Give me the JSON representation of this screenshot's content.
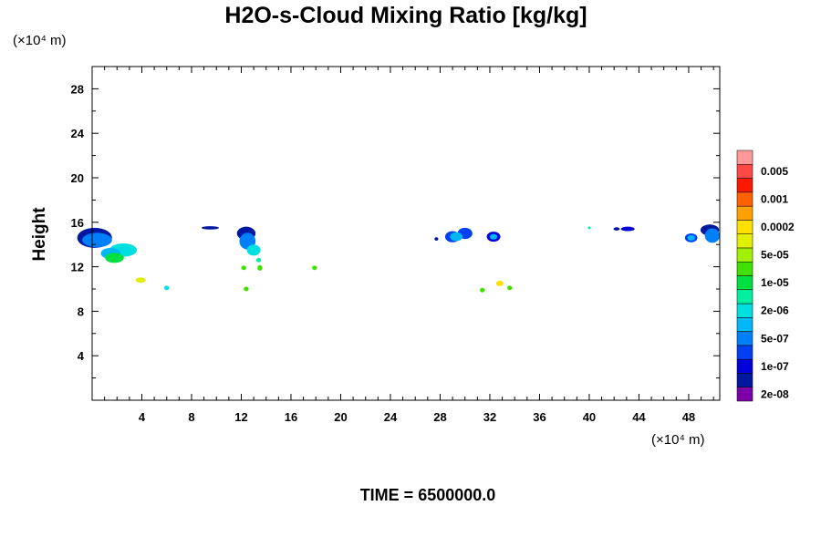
{
  "chart_data": {
    "type": "heatmap",
    "title": "H2O-s-Cloud Mixing Ratio [kg/kg]",
    "ylabel": "Height",
    "y_unit": "(×10⁴ m)",
    "x_unit": "(×10⁴ m)",
    "time_label": "TIME = 6500000.0",
    "xlim": [
      0,
      50.5
    ],
    "ylim": [
      0,
      30
    ],
    "x_ticks": [
      4,
      8,
      12,
      16,
      20,
      24,
      28,
      32,
      36,
      40,
      44,
      48
    ],
    "x_tick_labels": [
      "4",
      "8",
      "12",
      "16",
      "20",
      "24",
      "28",
      "32",
      "36",
      "40",
      "44",
      "48"
    ],
    "y_ticks": [
      4,
      8,
      12,
      16,
      20,
      24,
      28
    ],
    "y_tick_labels": [
      "4",
      "8",
      "12",
      "16",
      "20",
      "24",
      "28"
    ],
    "colorbar": {
      "colors": [
        "#7b00a8",
        "#0018a0",
        "#0000d8",
        "#0040f0",
        "#0080f8",
        "#00b8f8",
        "#00e0e0",
        "#00f0a0",
        "#00e040",
        "#40e000",
        "#a0f000",
        "#e0f000",
        "#ffe000",
        "#ffa000",
        "#ff6000",
        "#ff1800",
        "#ff4848",
        "#ff9898"
      ],
      "labels": [
        "2e-08",
        "1e-07",
        "5e-07",
        "2e-06",
        "1e-05",
        "5e-05",
        "0.0002",
        "0.001",
        "0.005"
      ]
    },
    "cloud_patches": [
      {
        "x": 0.2,
        "y": 14.6,
        "w": 2.8,
        "h": 1.8,
        "level": 1
      },
      {
        "x": 0.4,
        "y": 14.4,
        "w": 2.4,
        "h": 1.3,
        "level": 4
      },
      {
        "x": 2.5,
        "y": 13.5,
        "w": 2.2,
        "h": 1.2,
        "level": 6
      },
      {
        "x": 1.5,
        "y": 13.2,
        "w": 1.6,
        "h": 1.0,
        "level": 5
      },
      {
        "x": 1.8,
        "y": 12.8,
        "w": 1.5,
        "h": 0.9,
        "level": 8
      },
      {
        "x": 3.9,
        "y": 10.8,
        "w": 0.8,
        "h": 0.5,
        "level": 11
      },
      {
        "x": 6.0,
        "y": 10.1,
        "w": 0.4,
        "h": 0.4,
        "level": 6
      },
      {
        "x": 9.5,
        "y": 15.5,
        "w": 1.4,
        "h": 0.3,
        "level": 1
      },
      {
        "x": 12.4,
        "y": 15.0,
        "w": 1.5,
        "h": 1.2,
        "level": 1
      },
      {
        "x": 12.5,
        "y": 14.3,
        "w": 1.3,
        "h": 1.5,
        "level": 4
      },
      {
        "x": 13.0,
        "y": 13.5,
        "w": 1.1,
        "h": 1.0,
        "level": 6
      },
      {
        "x": 13.4,
        "y": 12.6,
        "w": 0.4,
        "h": 0.4,
        "level": 7
      },
      {
        "x": 12.2,
        "y": 11.9,
        "w": 0.4,
        "h": 0.4,
        "level": 9
      },
      {
        "x": 13.5,
        "y": 11.9,
        "w": 0.4,
        "h": 0.5,
        "level": 9
      },
      {
        "x": 12.4,
        "y": 10.0,
        "w": 0.4,
        "h": 0.4,
        "level": 9
      },
      {
        "x": 17.9,
        "y": 11.9,
        "w": 0.4,
        "h": 0.4,
        "level": 9
      },
      {
        "x": 27.7,
        "y": 14.5,
        "w": 0.3,
        "h": 0.3,
        "level": 1
      },
      {
        "x": 29.0,
        "y": 14.7,
        "w": 1.2,
        "h": 1.0,
        "level": 3
      },
      {
        "x": 30.0,
        "y": 15.0,
        "w": 1.2,
        "h": 1.0,
        "level": 3
      },
      {
        "x": 29.3,
        "y": 14.7,
        "w": 1.0,
        "h": 0.8,
        "level": 5
      },
      {
        "x": 32.3,
        "y": 14.7,
        "w": 1.1,
        "h": 0.9,
        "level": 2
      },
      {
        "x": 32.3,
        "y": 14.7,
        "w": 0.6,
        "h": 0.5,
        "level": 5
      },
      {
        "x": 31.4,
        "y": 9.9,
        "w": 0.4,
        "h": 0.4,
        "level": 9
      },
      {
        "x": 32.8,
        "y": 10.5,
        "w": 0.6,
        "h": 0.5,
        "level": 12
      },
      {
        "x": 33.6,
        "y": 10.1,
        "w": 0.4,
        "h": 0.4,
        "level": 9
      },
      {
        "x": 40.0,
        "y": 15.5,
        "w": 0.2,
        "h": 0.2,
        "level": 7
      },
      {
        "x": 42.2,
        "y": 15.4,
        "w": 0.5,
        "h": 0.3,
        "level": 1
      },
      {
        "x": 43.1,
        "y": 15.4,
        "w": 1.1,
        "h": 0.4,
        "level": 2
      },
      {
        "x": 48.2,
        "y": 14.6,
        "w": 1.0,
        "h": 0.8,
        "level": 3
      },
      {
        "x": 48.2,
        "y": 14.6,
        "w": 0.6,
        "h": 0.5,
        "level": 5
      },
      {
        "x": 49.7,
        "y": 15.3,
        "w": 1.5,
        "h": 1.0,
        "level": 1
      },
      {
        "x": 49.9,
        "y": 14.8,
        "w": 1.2,
        "h": 1.3,
        "level": 4
      }
    ]
  }
}
